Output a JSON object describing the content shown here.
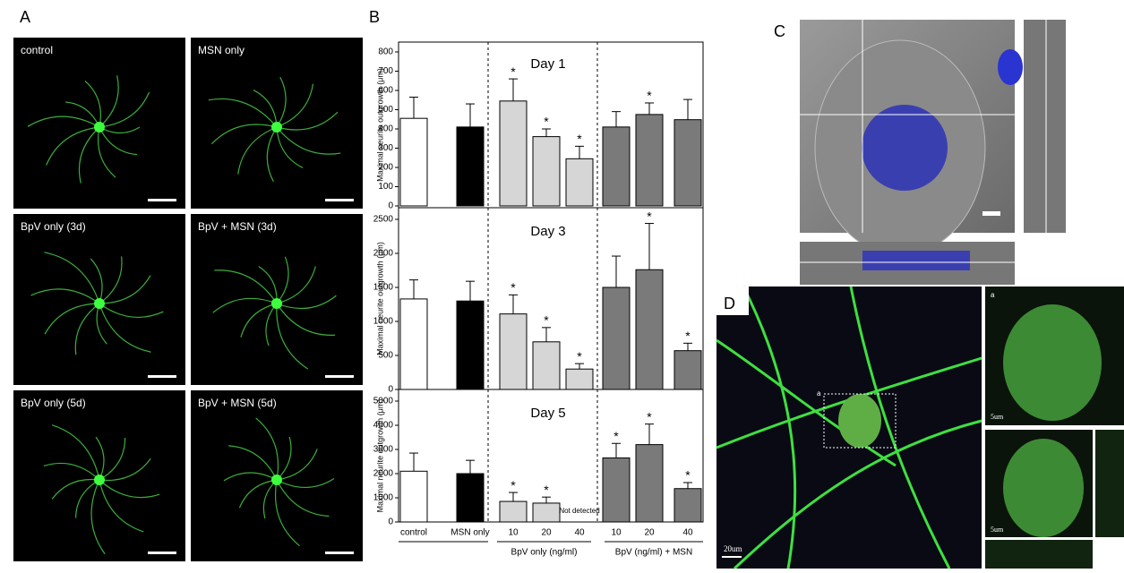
{
  "panel_a": {
    "label": "A",
    "images": [
      "control",
      "MSN only",
      "BpV only (3d)",
      "BpV + MSN (3d)",
      "BpV only (5d)",
      "BpV + MSN (5d)"
    ]
  },
  "panel_b": {
    "label": "B"
  },
  "panel_c": {
    "label": "C"
  },
  "panel_d": {
    "label": "D",
    "inset_labels": [
      "a",
      "a"
    ],
    "scale_bars": [
      "20um",
      "5um",
      "5um"
    ]
  },
  "chart_data": [
    {
      "type": "bar",
      "title": "Day 1",
      "ylabel": "Maximal neurite outgrowth (μm)",
      "values": [
        455,
        410,
        545,
        360,
        245,
        410,
        475,
        448
      ],
      "errors": [
        110,
        120,
        115,
        40,
        65,
        80,
        60,
        105
      ],
      "colors": [
        "#ffffff",
        "#000000",
        "#d6d6d6",
        "#d6d6d6",
        "#d6d6d6",
        "#7a7a7a",
        "#7a7a7a",
        "#7a7a7a"
      ],
      "significant": [
        false,
        false,
        true,
        true,
        true,
        false,
        true,
        false
      ],
      "significance_marker": "*",
      "ylim": [
        0,
        800
      ],
      "yticks": [
        0,
        100,
        200,
        300,
        400,
        500,
        600,
        700,
        800
      ]
    },
    {
      "type": "bar",
      "title": "Day 3",
      "ylabel": "Maximal neurite outgrowth (μm)",
      "values": [
        1330,
        1300,
        1110,
        700,
        300,
        1500,
        1760,
        570
      ],
      "errors": [
        280,
        290,
        280,
        210,
        80,
        460,
        680,
        110
      ],
      "colors": [
        "#ffffff",
        "#000000",
        "#d6d6d6",
        "#d6d6d6",
        "#d6d6d6",
        "#7a7a7a",
        "#7a7a7a",
        "#7a7a7a"
      ],
      "significant": [
        false,
        false,
        true,
        true,
        true,
        false,
        true,
        true
      ],
      "significance_marker": "*",
      "ylim": [
        0,
        2500
      ],
      "yticks": [
        0,
        500,
        1000,
        1500,
        2000,
        2500
      ]
    },
    {
      "type": "bar",
      "title": "Day 5",
      "ylabel": "Maximal neurite outgrowth (μm)",
      "categories": [
        "control",
        "MSN only",
        "10",
        "20",
        "40",
        "10",
        "20",
        "40"
      ],
      "group_labels": [
        "BpV only (ng/ml)",
        "BpV (ng/ml) + MSN"
      ],
      "values": [
        2100,
        2000,
        850,
        780,
        null,
        2650,
        3200,
        1380
      ],
      "errors": [
        750,
        550,
        370,
        250,
        null,
        600,
        850,
        250
      ],
      "value_labels": [
        null,
        null,
        null,
        null,
        "Not detected",
        null,
        null,
        null
      ],
      "colors": [
        "#ffffff",
        "#000000",
        "#d6d6d6",
        "#d6d6d6",
        "#d6d6d6",
        "#7a7a7a",
        "#7a7a7a",
        "#7a7a7a"
      ],
      "significant": [
        false,
        false,
        true,
        true,
        false,
        true,
        true,
        true
      ],
      "significance_marker": "*",
      "ylim": [
        0,
        5000
      ],
      "yticks": [
        0,
        1000,
        2000,
        3000,
        4000,
        5000
      ]
    }
  ]
}
